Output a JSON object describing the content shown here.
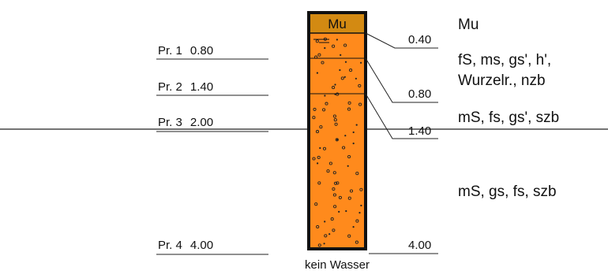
{
  "profile": {
    "colors": {
      "topsoil": "#d38a12",
      "sand": "#ff8a1c",
      "outline": "#111111",
      "line": "#222222",
      "dot": "#222222"
    },
    "samples": [
      {
        "name": "Pr. 1",
        "depth": "0.80"
      },
      {
        "name": "Pr. 2",
        "depth": "1.40"
      },
      {
        "name": "Pr. 3",
        "depth": "2.00"
      },
      {
        "name": "Pr. 4",
        "depth": "4.00"
      }
    ],
    "column_label": "Mu",
    "boundaries": [
      "0.40",
      "0.80",
      "1.40",
      "4.00"
    ],
    "layers": [
      {
        "text": "Mu"
      },
      {
        "text": "fS, ms, gs', h',",
        "text2": "Wurzelr., nzb"
      },
      {
        "text": "mS, fs, gs', szb"
      },
      {
        "text": "mS, gs, fs, szb"
      }
    ],
    "water_note": "kein Wasser"
  }
}
